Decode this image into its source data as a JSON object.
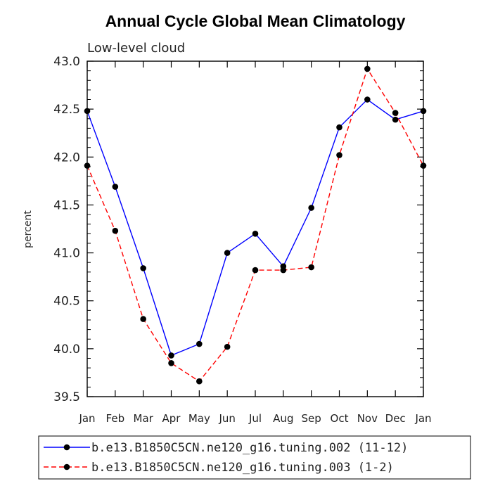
{
  "chart_data": {
    "type": "line",
    "title": "Annual Cycle Global Mean Climatology",
    "subtitle": "Low-level cloud",
    "xlabel": "",
    "ylabel": "percent",
    "ylim": [
      39.5,
      43.0
    ],
    "yticks": [
      "39.5",
      "40.0",
      "40.5",
      "41.0",
      "41.5",
      "42.0",
      "42.5",
      "43.0"
    ],
    "categories": [
      "Jan",
      "Feb",
      "Mar",
      "Apr",
      "May",
      "Jun",
      "Jul",
      "Aug",
      "Sep",
      "Oct",
      "Nov",
      "Dec",
      "Jan"
    ],
    "series": [
      {
        "name": "b.e13.B1850C5CN.ne120_g16.tuning.002 (11-12)",
        "color": "#0000ff",
        "style": "solid",
        "values": [
          42.48,
          41.69,
          40.84,
          39.93,
          40.05,
          41.0,
          41.2,
          40.86,
          41.47,
          42.31,
          42.6,
          42.39,
          42.48
        ]
      },
      {
        "name": "b.e13.B1850C5CN.ne120_g16.tuning.003 (1-2)",
        "color": "#ff0000",
        "style": "dashed",
        "values": [
          41.91,
          41.23,
          40.31,
          39.85,
          39.66,
          40.02,
          40.82,
          40.82,
          40.85,
          42.02,
          42.92,
          42.46,
          41.91
        ]
      }
    ],
    "legend_position": "bottom"
  }
}
